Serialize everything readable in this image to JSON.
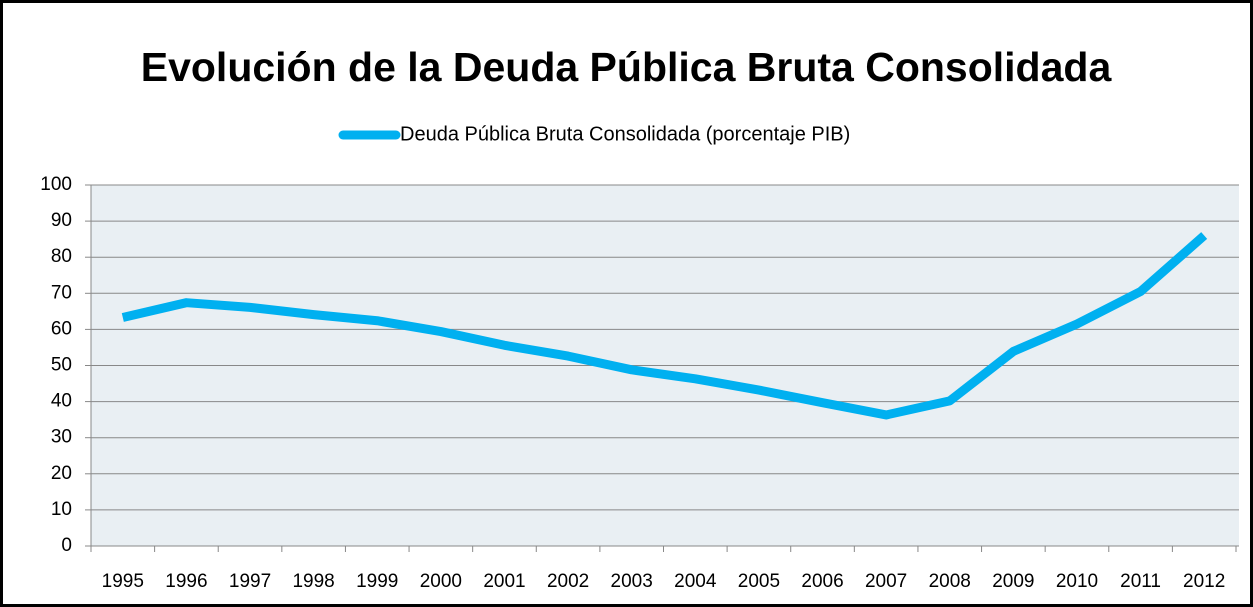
{
  "chart_data": {
    "type": "line",
    "title": "Evolución de la Deuda Pública Bruta Consolidada",
    "categories": [
      "1995",
      "1996",
      "1997",
      "1998",
      "1999",
      "2000",
      "2001",
      "2002",
      "2003",
      "2004",
      "2005",
      "2006",
      "2007",
      "2008",
      "2009",
      "2010",
      "2011",
      "2012"
    ],
    "series": [
      {
        "name": "Deuda Pública Bruta Consolidada (porcentaje PIB)",
        "color": "#00b0f0",
        "values": [
          63.3,
          67.4,
          66.1,
          64.1,
          62.4,
          59.4,
          55.6,
          52.6,
          48.8,
          46.3,
          43.2,
          39.7,
          36.3,
          40.2,
          53.9,
          61.5,
          70.5,
          86.0
        ]
      }
    ],
    "ylim": [
      0,
      100
    ],
    "yticks": [
      0,
      10,
      20,
      30,
      40,
      50,
      60,
      70,
      80,
      90,
      100
    ],
    "grid": true,
    "legend": "top"
  }
}
